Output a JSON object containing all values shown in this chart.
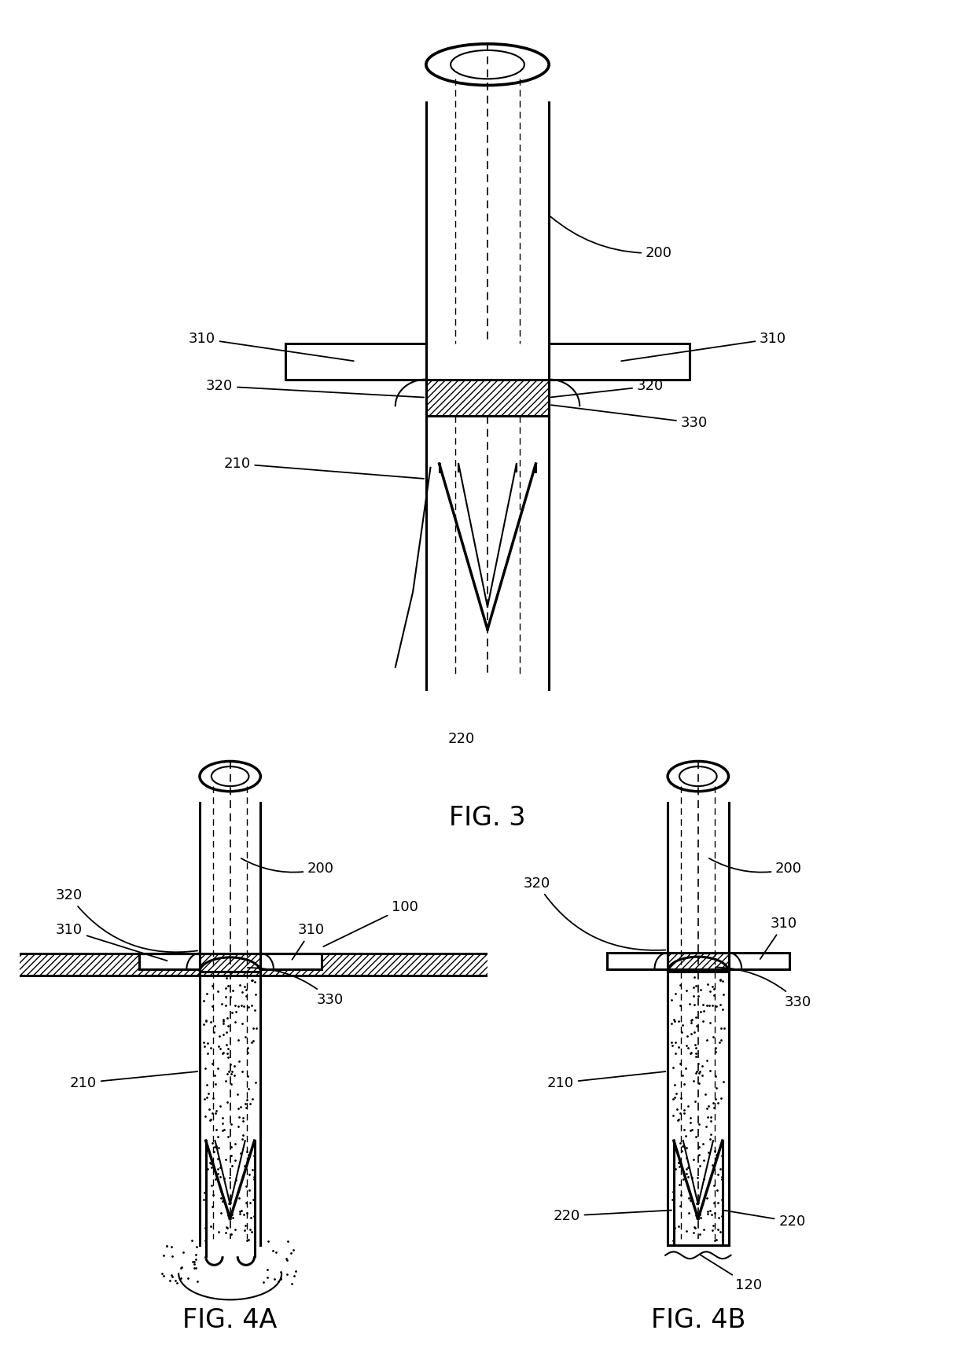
{
  "bg_color": "#ffffff",
  "line_color": "#000000",
  "fig_width": 12.4,
  "fig_height": 17.11,
  "font_size_label": 13,
  "font_size_title": 24,
  "fig3_title": "FIG. 3",
  "fig4a_title": "FIG. 4A",
  "fig4b_title": "FIG. 4B"
}
